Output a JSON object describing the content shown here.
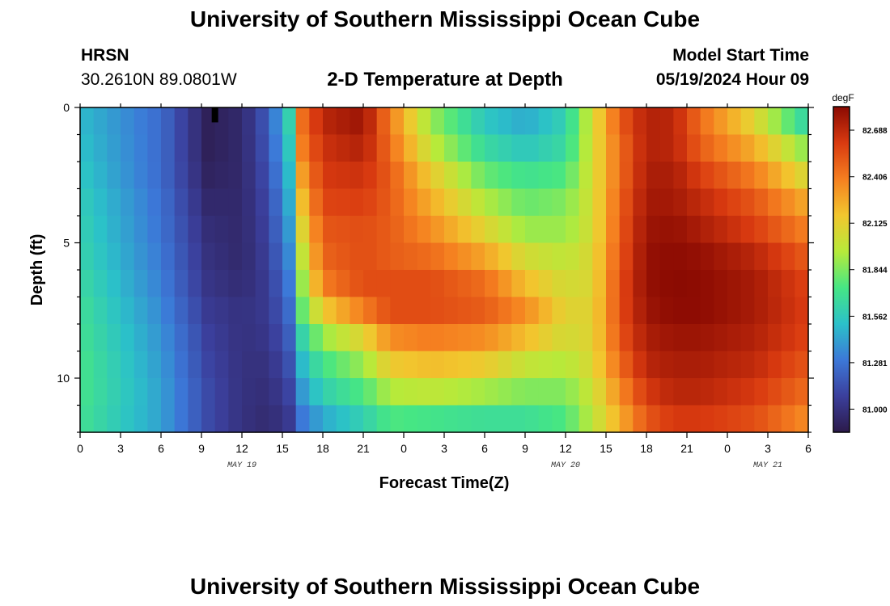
{
  "page": {
    "title_top": "University of Southern Mississippi Ocean Cube",
    "title_bottom": "University of Southern Mississippi Ocean Cube",
    "station": "HRSN",
    "coords": "30.2610N  89.0801W",
    "plot_title": "2-D Temperature at Depth",
    "model_label": "Model Start Time",
    "model_time": "05/19/2024 Hour 09"
  },
  "chart_data": {
    "type": "heatmap",
    "title": "2-D Temperature at Depth",
    "xlabel": "Forecast Time(Z)",
    "ylabel": "Depth (ft)",
    "units": "degF",
    "x_start_hour": 0,
    "x_end_hour": 54,
    "x_cell_hours": 1,
    "y_depths_ft": [
      0.5,
      1.5,
      2.5,
      3.5,
      4.5,
      5.5,
      6.5,
      7.5,
      8.5,
      9.5,
      10.5,
      11.5
    ],
    "ylim": [
      0,
      12
    ],
    "x_tick_labels": [
      "0",
      "3",
      "6",
      "9",
      "12",
      "15",
      "18",
      "21",
      "0",
      "3",
      "6",
      "9",
      "12",
      "15",
      "18",
      "21",
      "0",
      "3",
      "6"
    ],
    "x_tick_hours": [
      0,
      3,
      6,
      9,
      12,
      15,
      18,
      21,
      24,
      27,
      30,
      33,
      36,
      39,
      42,
      45,
      48,
      51,
      54
    ],
    "y_tick_labels": [
      "0",
      "5",
      "10"
    ],
    "y_tick_values": [
      0,
      5,
      10
    ],
    "date_labels": [
      {
        "text": "MAY 19",
        "hour": 12
      },
      {
        "text": "MAY 20",
        "hour": 36
      },
      {
        "text": "MAY 21",
        "hour": 51
      }
    ],
    "colorbar": {
      "min": 80.86,
      "max": 82.83,
      "tick_values": [
        81.0,
        81.281,
        81.562,
        81.844,
        82.125,
        82.406,
        82.688
      ],
      "tick_labels": [
        "81.000",
        "81.281",
        "81.562",
        "81.844",
        "82.125",
        "82.406",
        "82.688"
      ],
      "colormap": [
        "#2c1a4a",
        "#3b3f9c",
        "#3c78d8",
        "#2bc1c9",
        "#46e684",
        "#b7ea3a",
        "#f2c62e",
        "#f57f20",
        "#d93a10",
        "#8a0a02"
      ]
    },
    "profiles": {
      "hours": [
        0,
        6,
        9.5,
        12,
        14,
        15.5,
        16.5,
        18,
        21,
        23,
        26,
        30,
        33,
        36,
        38,
        40,
        42,
        44,
        46,
        50,
        54
      ],
      "rows": [
        [
          81.5,
          81.25,
          80.9,
          80.95,
          81.2,
          81.6,
          82.45,
          82.7,
          82.78,
          82.4,
          81.9,
          81.55,
          81.45,
          81.6,
          82.05,
          82.5,
          82.72,
          82.7,
          82.45,
          82.1,
          81.6
        ],
        [
          81.52,
          81.25,
          80.9,
          80.95,
          81.18,
          81.55,
          82.4,
          82.65,
          82.72,
          82.45,
          82.0,
          81.65,
          81.55,
          81.65,
          82.05,
          82.45,
          82.72,
          82.7,
          82.5,
          82.25,
          81.85
        ],
        [
          81.55,
          81.25,
          80.92,
          80.95,
          81.15,
          81.5,
          82.3,
          82.62,
          82.65,
          82.5,
          82.15,
          81.8,
          81.7,
          81.75,
          82.05,
          82.45,
          82.74,
          82.74,
          82.6,
          82.4,
          82.05
        ],
        [
          81.58,
          81.27,
          80.95,
          80.95,
          81.12,
          81.45,
          82.2,
          82.58,
          82.6,
          82.5,
          82.25,
          81.95,
          81.8,
          81.85,
          82.05,
          82.48,
          82.76,
          82.76,
          82.68,
          82.52,
          82.25
        ],
        [
          81.6,
          81.28,
          80.98,
          80.95,
          81.1,
          81.4,
          82.1,
          82.52,
          82.55,
          82.5,
          82.35,
          82.1,
          81.9,
          81.9,
          82.05,
          82.5,
          82.78,
          82.8,
          82.74,
          82.6,
          82.38
        ],
        [
          81.62,
          81.3,
          81.0,
          80.95,
          81.08,
          81.35,
          82.0,
          82.48,
          82.55,
          82.5,
          82.45,
          82.28,
          82.05,
          81.98,
          82.08,
          82.52,
          82.8,
          82.82,
          82.8,
          82.7,
          82.5
        ],
        [
          81.65,
          81.32,
          81.02,
          80.97,
          81.06,
          81.3,
          81.9,
          82.4,
          82.55,
          82.55,
          82.55,
          82.45,
          82.2,
          82.05,
          82.08,
          82.55,
          82.8,
          82.83,
          82.82,
          82.75,
          82.58
        ],
        [
          81.68,
          81.35,
          81.05,
          81.0,
          81.05,
          81.25,
          81.8,
          82.15,
          82.4,
          82.55,
          82.55,
          82.5,
          82.35,
          82.1,
          82.1,
          82.55,
          82.78,
          82.82,
          82.82,
          82.75,
          82.6
        ],
        [
          81.7,
          81.38,
          81.08,
          81.0,
          81.03,
          81.2,
          81.62,
          81.9,
          82.1,
          82.35,
          82.4,
          82.35,
          82.2,
          82.05,
          82.1,
          82.52,
          82.74,
          82.78,
          82.78,
          82.72,
          82.58
        ],
        [
          81.72,
          81.4,
          81.1,
          81.0,
          81.0,
          81.15,
          81.5,
          81.72,
          81.9,
          82.15,
          82.2,
          82.15,
          82.0,
          81.95,
          82.08,
          82.45,
          82.7,
          82.74,
          82.74,
          82.68,
          82.52
        ],
        [
          81.72,
          81.42,
          81.12,
          81.0,
          80.98,
          81.1,
          81.4,
          81.6,
          81.75,
          81.95,
          81.98,
          81.92,
          81.85,
          81.85,
          82.02,
          82.35,
          82.62,
          82.7,
          82.7,
          82.62,
          82.45
        ],
        [
          81.7,
          81.42,
          81.12,
          81.0,
          80.96,
          81.05,
          81.3,
          81.45,
          81.6,
          81.75,
          81.72,
          81.68,
          81.68,
          81.75,
          81.98,
          82.25,
          82.52,
          82.62,
          82.62,
          82.55,
          82.35
        ]
      ]
    },
    "annotations": [
      {
        "type": "missing-cell",
        "hour": 10,
        "depth_ft": 0.25
      }
    ]
  }
}
